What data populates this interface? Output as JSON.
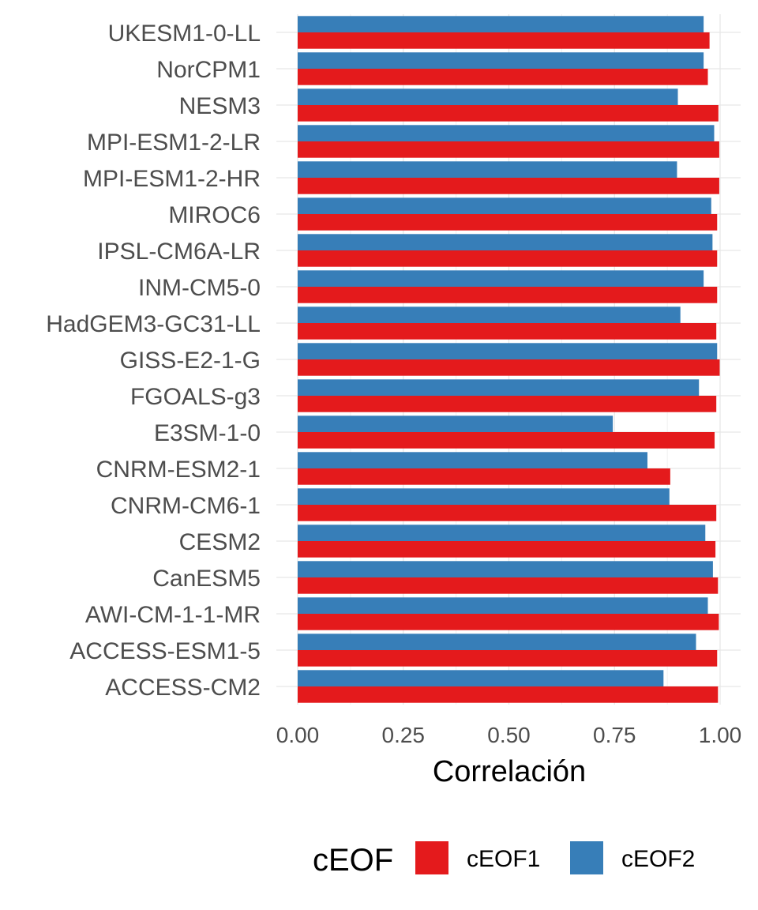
{
  "chart_data": {
    "type": "bar",
    "orientation": "horizontal",
    "categories": [
      "UKESM1-0-LL",
      "NorCPM1",
      "NESM3",
      "MPI-ESM1-2-LR",
      "MPI-ESM1-2-HR",
      "MIROC6",
      "IPSL-CM6A-LR",
      "INM-CM5-0",
      "HadGEM3-GC31-LL",
      "GISS-E2-1-G",
      "FGOALS-g3",
      "E3SM-1-0",
      "CNRM-ESM2-1",
      "CNRM-CM6-1",
      "CESM2",
      "CanESM5",
      "AWI-CM-1-1-MR",
      "ACCESS-ESM1-5",
      "ACCESS-CM2"
    ],
    "series": [
      {
        "name": "cEOF1",
        "color": "#E41A1C",
        "values": [
          0.975,
          0.971,
          0.996,
          0.998,
          0.998,
          0.993,
          0.993,
          0.993,
          0.991,
          0.999,
          0.991,
          0.987,
          0.882,
          0.991,
          0.989,
          0.995,
          0.997,
          0.993,
          0.995
        ]
      },
      {
        "name": "cEOF2",
        "color": "#377EB8",
        "values": [
          0.961,
          0.961,
          0.9,
          0.986,
          0.898,
          0.979,
          0.982,
          0.961,
          0.906,
          0.993,
          0.95,
          0.746,
          0.828,
          0.88,
          0.965,
          0.983,
          0.971,
          0.943,
          0.866
        ]
      }
    ],
    "xlabel": "Correlación",
    "ylabel": "",
    "xlim": [
      0,
      1.05
    ],
    "xticks": [
      0,
      0.25,
      0.5,
      0.75,
      1.0
    ],
    "xtick_labels": [
      "0.00",
      "0.25",
      "0.50",
      "0.75",
      "1.00"
    ],
    "grid": true,
    "legend": {
      "title": "cEOF",
      "position": "bottom",
      "entries": [
        "cEOF1",
        "cEOF2"
      ]
    }
  }
}
